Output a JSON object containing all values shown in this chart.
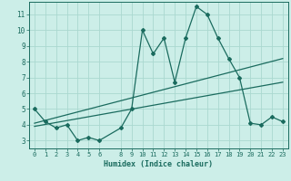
{
  "title": "",
  "xlabel": "Humidex (Indice chaleur)",
  "bg_color": "#cceee8",
  "line_color": "#1a6b5e",
  "grid_color": "#aad8d0",
  "xlim": [
    -0.5,
    23.5
  ],
  "ylim": [
    2.5,
    11.8
  ],
  "xticks": [
    0,
    1,
    2,
    3,
    4,
    5,
    6,
    8,
    9,
    10,
    11,
    12,
    13,
    14,
    15,
    16,
    17,
    18,
    19,
    20,
    21,
    22,
    23
  ],
  "yticks": [
    3,
    4,
    5,
    6,
    7,
    8,
    9,
    10,
    11
  ],
  "main_x": [
    0,
    1,
    2,
    3,
    4,
    5,
    6,
    8,
    9,
    10,
    11,
    12,
    13,
    14,
    15,
    16,
    17,
    18,
    19,
    20,
    21,
    22,
    23
  ],
  "main_y": [
    5.0,
    4.2,
    3.8,
    4.0,
    3.0,
    3.2,
    3.0,
    3.8,
    5.0,
    10.0,
    8.5,
    9.5,
    6.7,
    9.5,
    11.5,
    11.0,
    9.5,
    8.2,
    7.0,
    4.1,
    4.0,
    4.5,
    4.2
  ],
  "trend1_x": [
    0,
    23
  ],
  "trend1_y": [
    4.1,
    8.2
  ],
  "trend2_x": [
    0,
    23
  ],
  "trend2_y": [
    3.9,
    6.7
  ]
}
